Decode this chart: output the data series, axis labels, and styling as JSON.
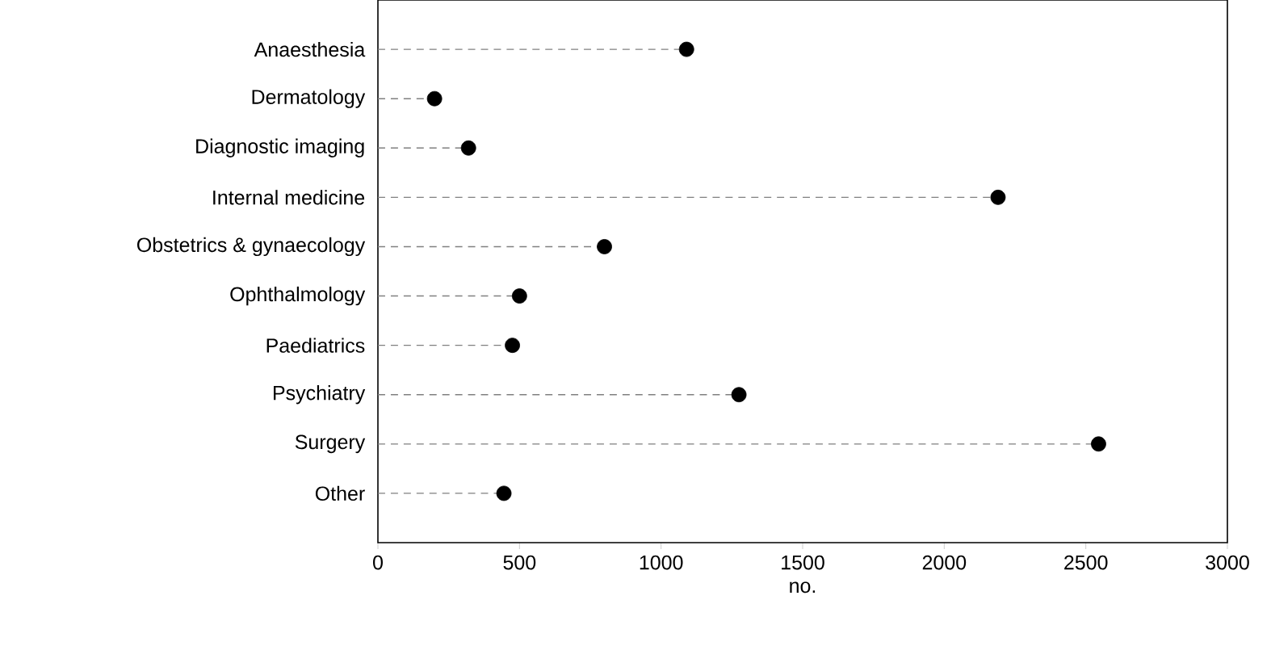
{
  "chart_data": {
    "type": "lollipop",
    "orientation": "horizontal",
    "xlabel": "no.",
    "categories": [
      "Anaesthesia",
      "Dermatology",
      "Diagnostic imaging",
      "Internal medicine",
      "Obstetrics & gynaecology",
      "Ophthalmology",
      "Paediatrics",
      "Psychiatry",
      "Surgery",
      "Other"
    ],
    "values": [
      1090,
      200,
      320,
      2190,
      800,
      500,
      475,
      1275,
      2545,
      445
    ],
    "color": "#000000",
    "marker": "circle",
    "line_style": "dashed",
    "xlim": [
      0,
      3000
    ],
    "xticks": [
      0,
      500,
      1000,
      1500,
      2000,
      2500,
      3000
    ],
    "grid": false
  }
}
